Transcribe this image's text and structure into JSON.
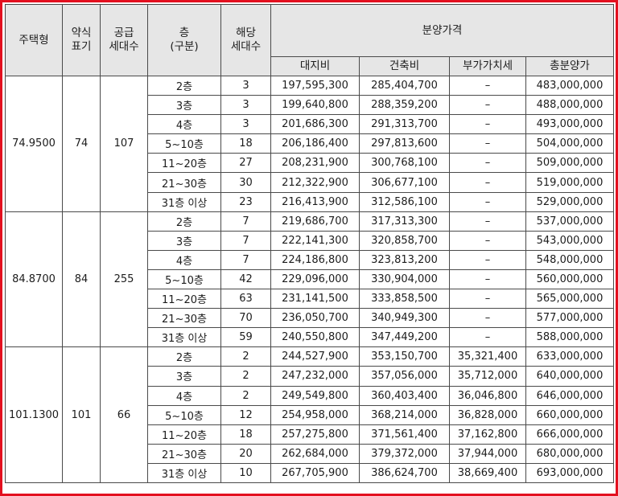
{
  "headers": {
    "type": "주택형",
    "short": [
      "약식",
      "표기"
    ],
    "supply": [
      "공급",
      "세대수"
    ],
    "floor": [
      "층",
      "(구분)"
    ],
    "units": [
      "해당",
      "세대수"
    ],
    "price_group": "분양가격",
    "land": "대지비",
    "building": "건축비",
    "vat": "부가가치세",
    "total": "총분양가"
  },
  "groups": [
    {
      "type": "74.9500",
      "short": "74",
      "supply": "107",
      "rows": [
        {
          "floor": "2층",
          "units": "3",
          "land": "197,595,300",
          "building": "285,404,700",
          "vat": "–",
          "total": "483,000,000"
        },
        {
          "floor": "3층",
          "units": "3",
          "land": "199,640,800",
          "building": "288,359,200",
          "vat": "–",
          "total": "488,000,000"
        },
        {
          "floor": "4층",
          "units": "3",
          "land": "201,686,300",
          "building": "291,313,700",
          "vat": "–",
          "total": "493,000,000"
        },
        {
          "floor": "5~10층",
          "units": "18",
          "land": "206,186,400",
          "building": "297,813,600",
          "vat": "–",
          "total": "504,000,000"
        },
        {
          "floor": "11~20층",
          "units": "27",
          "land": "208,231,900",
          "building": "300,768,100",
          "vat": "–",
          "total": "509,000,000"
        },
        {
          "floor": "21~30층",
          "units": "30",
          "land": "212,322,900",
          "building": "306,677,100",
          "vat": "–",
          "total": "519,000,000"
        },
        {
          "floor": "31층 이상",
          "units": "23",
          "land": "216,413,900",
          "building": "312,586,100",
          "vat": "–",
          "total": "529,000,000"
        }
      ]
    },
    {
      "type": "84.8700",
      "short": "84",
      "supply": "255",
      "rows": [
        {
          "floor": "2층",
          "units": "7",
          "land": "219,686,700",
          "building": "317,313,300",
          "vat": "–",
          "total": "537,000,000"
        },
        {
          "floor": "3층",
          "units": "7",
          "land": "222,141,300",
          "building": "320,858,700",
          "vat": "–",
          "total": "543,000,000"
        },
        {
          "floor": "4층",
          "units": "7",
          "land": "224,186,800",
          "building": "323,813,200",
          "vat": "–",
          "total": "548,000,000"
        },
        {
          "floor": "5~10층",
          "units": "42",
          "land": "229,096,000",
          "building": "330,904,000",
          "vat": "–",
          "total": "560,000,000"
        },
        {
          "floor": "11~20층",
          "units": "63",
          "land": "231,141,500",
          "building": "333,858,500",
          "vat": "–",
          "total": "565,000,000"
        },
        {
          "floor": "21~30층",
          "units": "70",
          "land": "236,050,700",
          "building": "340,949,300",
          "vat": "–",
          "total": "577,000,000"
        },
        {
          "floor": "31층 이상",
          "units": "59",
          "land": "240,550,800",
          "building": "347,449,200",
          "vat": "–",
          "total": "588,000,000"
        }
      ]
    },
    {
      "type": "101.1300",
      "short": "101",
      "supply": "66",
      "rows": [
        {
          "floor": "2층",
          "units": "2",
          "land": "244,527,900",
          "building": "353,150,700",
          "vat": "35,321,400",
          "total": "633,000,000"
        },
        {
          "floor": "3층",
          "units": "2",
          "land": "247,232,000",
          "building": "357,056,000",
          "vat": "35,712,000",
          "total": "640,000,000"
        },
        {
          "floor": "4층",
          "units": "2",
          "land": "249,549,800",
          "building": "360,403,400",
          "vat": "36,046,800",
          "total": "646,000,000"
        },
        {
          "floor": "5~10층",
          "units": "12",
          "land": "254,958,000",
          "building": "368,214,000",
          "vat": "36,828,000",
          "total": "660,000,000"
        },
        {
          "floor": "11~20층",
          "units": "18",
          "land": "257,275,800",
          "building": "371,561,400",
          "vat": "37,162,800",
          "total": "666,000,000"
        },
        {
          "floor": "21~30층",
          "units": "20",
          "land": "262,684,000",
          "building": "379,372,000",
          "vat": "37,944,000",
          "total": "680,000,000"
        },
        {
          "floor": "31층 이상",
          "units": "10",
          "land": "267,705,900",
          "building": "386,624,700",
          "vat": "38,669,400",
          "total": "693,000,000"
        }
      ]
    }
  ]
}
